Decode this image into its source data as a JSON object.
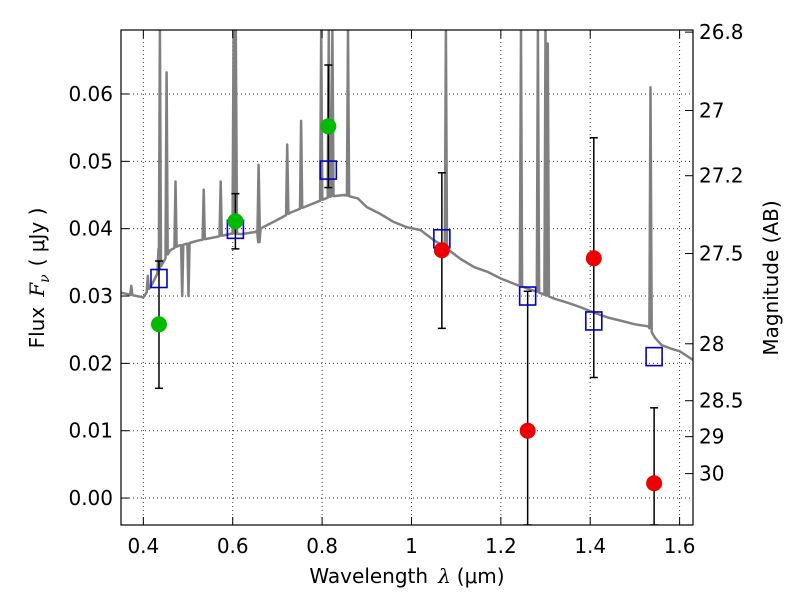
{
  "chart_data": {
    "type": "scatter",
    "xlabel_prefix": "Wavelength",
    "xlabel_unit": "(μm)",
    "ylabel_prefix": "Flux",
    "ylabel_unit": "( μJy )",
    "y2label": "Magnitude (AB)",
    "xlim": [
      0.35,
      1.63
    ],
    "ylim": [
      -0.004,
      0.0695
    ],
    "x_ticks": [
      0.4,
      0.6,
      0.8,
      1.0,
      1.2,
      1.4,
      1.6
    ],
    "x_tick_labels": [
      "0.4",
      "0.6",
      "0.8",
      "1",
      "1.2",
      "1.4",
      "1.6"
    ],
    "y_ticks": [
      0.0,
      0.01,
      0.02,
      0.03,
      0.04,
      0.05,
      0.06
    ],
    "y_tick_labels": [
      "0.00",
      "0.01",
      "0.02",
      "0.03",
      "0.04",
      "0.05",
      "0.06"
    ],
    "y2_ticks": [
      {
        "mag": 26.8,
        "label": "26.8"
      },
      {
        "mag": 27.0,
        "label": "27"
      },
      {
        "mag": 27.2,
        "label": "27.2"
      },
      {
        "mag": 27.5,
        "label": "27.5"
      },
      {
        "mag": 28.0,
        "label": "28"
      },
      {
        "mag": 28.5,
        "label": "28.5"
      },
      {
        "mag": 29.0,
        "label": "29"
      },
      {
        "mag": 30.0,
        "label": "30"
      }
    ],
    "grid": true,
    "colors": {
      "model": "#808080",
      "model_photometry": "#0000cc",
      "observed_optical": "#00bb00",
      "observed_nir": "#ee0000",
      "errorbar": "#000000"
    },
    "model_spectrum": {
      "continuum": [
        [
          0.35,
          0.0305
        ],
        [
          0.37,
          0.0302
        ],
        [
          0.4,
          0.0298
        ],
        [
          0.42,
          0.0318
        ],
        [
          0.44,
          0.0345
        ],
        [
          0.46,
          0.0368
        ],
        [
          0.48,
          0.0375
        ],
        [
          0.5,
          0.0378
        ],
        [
          0.52,
          0.0382
        ],
        [
          0.55,
          0.0386
        ],
        [
          0.58,
          0.039
        ],
        [
          0.6,
          0.0393
        ],
        [
          0.62,
          0.0392
        ],
        [
          0.65,
          0.0395
        ],
        [
          0.67,
          0.0403
        ],
        [
          0.7,
          0.0413
        ],
        [
          0.73,
          0.0424
        ],
        [
          0.76,
          0.0432
        ],
        [
          0.79,
          0.044
        ],
        [
          0.82,
          0.0448
        ],
        [
          0.85,
          0.045
        ],
        [
          0.88,
          0.0445
        ],
        [
          0.9,
          0.0432
        ],
        [
          0.93,
          0.0422
        ],
        [
          0.96,
          0.041
        ],
        [
          0.99,
          0.0402
        ],
        [
          1.02,
          0.0398
        ],
        [
          1.05,
          0.0383
        ],
        [
          1.08,
          0.037
        ],
        [
          1.11,
          0.0355
        ],
        [
          1.14,
          0.0343
        ],
        [
          1.17,
          0.0336
        ],
        [
          1.2,
          0.0326
        ],
        [
          1.23,
          0.0318
        ],
        [
          1.26,
          0.0311
        ],
        [
          1.29,
          0.0304
        ],
        [
          1.32,
          0.0296
        ],
        [
          1.35,
          0.029
        ],
        [
          1.38,
          0.0283
        ],
        [
          1.41,
          0.0275
        ],
        [
          1.44,
          0.0268
        ],
        [
          1.47,
          0.0263
        ],
        [
          1.5,
          0.0258
        ],
        [
          1.53,
          0.0255
        ],
        [
          1.545,
          0.0238
        ],
        [
          1.56,
          0.0227
        ],
        [
          1.58,
          0.0222
        ],
        [
          1.6,
          0.0218
        ],
        [
          1.63,
          0.0205
        ]
      ],
      "emission_lines": [
        {
          "x": 0.373,
          "peak": 0.0315
        },
        {
          "x": 0.41,
          "peak": 0.033
        },
        {
          "x": 0.434,
          "peak": 0.037
        },
        {
          "x": 0.487,
          "peak": 0.03
        },
        {
          "x": 0.501,
          "peak": 0.03
        },
        {
          "x": 0.657,
          "peak": 0.038
        },
        {
          "x": 0.66,
          "peak": 0.038
        }
      ],
      "spikes": [
        {
          "x": 0.437,
          "peak": 0.0695
        },
        {
          "x": 0.452,
          "peak": 0.0632
        },
        {
          "x": 0.472,
          "peak": 0.047
        },
        {
          "x": 0.535,
          "peak": 0.0458
        },
        {
          "x": 0.573,
          "peak": 0.047
        },
        {
          "x": 0.602,
          "peak": 0.0695
        },
        {
          "x": 0.607,
          "peak": 0.0695
        },
        {
          "x": 0.658,
          "peak": 0.0495
        },
        {
          "x": 0.722,
          "peak": 0.0525
        },
        {
          "x": 0.753,
          "peak": 0.056
        },
        {
          "x": 0.798,
          "peak": 0.0695
        },
        {
          "x": 0.815,
          "peak": 0.0695
        },
        {
          "x": 0.823,
          "peak": 0.0695
        },
        {
          "x": 0.858,
          "peak": 0.0695
        },
        {
          "x": 1.077,
          "peak": 0.0695
        },
        {
          "x": 1.245,
          "peak": 0.0695
        },
        {
          "x": 1.283,
          "peak": 0.0695
        },
        {
          "x": 1.3,
          "peak": 0.0695
        },
        {
          "x": 1.305,
          "peak": 0.0675
        },
        {
          "x": 1.535,
          "peak": 0.061
        }
      ]
    },
    "model_photometry": [
      {
        "x": 0.435,
        "y": 0.0326
      },
      {
        "x": 0.606,
        "y": 0.0399
      },
      {
        "x": 0.814,
        "y": 0.0487
      },
      {
        "x": 1.068,
        "y": 0.0385
      },
      {
        "x": 1.26,
        "y": 0.03
      },
      {
        "x": 1.408,
        "y": 0.0263
      },
      {
        "x": 1.543,
        "y": 0.021
      }
    ],
    "observed": [
      {
        "x": 0.435,
        "y": 0.0258,
        "yerr_low": 0.0163,
        "yerr_high": 0.0352,
        "band": "optical"
      },
      {
        "x": 0.606,
        "y": 0.0411,
        "yerr_low": 0.037,
        "yerr_high": 0.0452,
        "band": "optical"
      },
      {
        "x": 0.814,
        "y": 0.0552,
        "yerr_low": 0.0461,
        "yerr_high": 0.0643,
        "band": "optical"
      },
      {
        "x": 1.068,
        "y": 0.0368,
        "yerr_low": 0.0252,
        "yerr_high": 0.0483,
        "band": "nir"
      },
      {
        "x": 1.26,
        "y": 0.01,
        "yerr_low": -0.004,
        "yerr_high": 0.0307,
        "band": "nir"
      },
      {
        "x": 1.408,
        "y": 0.0356,
        "yerr_low": 0.0179,
        "yerr_high": 0.0535,
        "band": "nir"
      },
      {
        "x": 1.543,
        "y": 0.0022,
        "yerr_low": -0.004,
        "yerr_high": 0.0134,
        "band": "nir"
      }
    ]
  }
}
